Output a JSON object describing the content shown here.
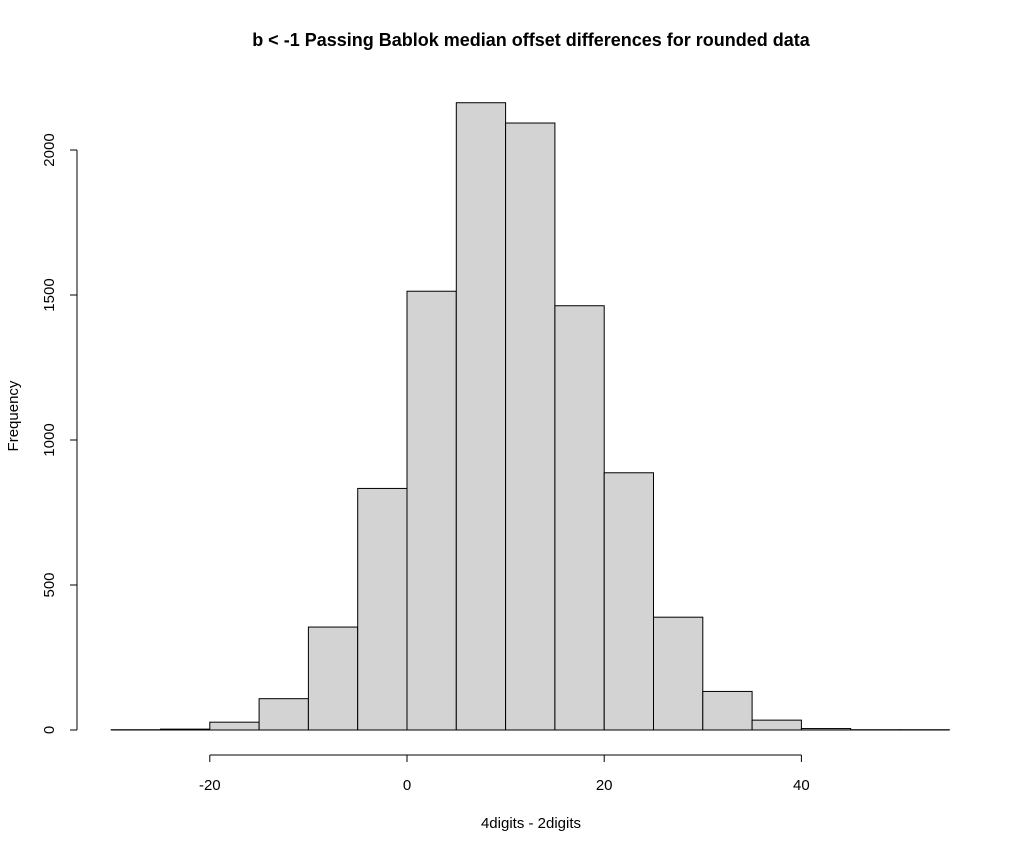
{
  "chart_data": {
    "type": "bar",
    "subtype": "histogram",
    "title": "b < -1 Passing Bablok median offset differences for rounded data",
    "xlabel": "4digits - 2digits",
    "ylabel": "Frequency",
    "bins": [
      {
        "from": -30,
        "to": -25,
        "count": 1
      },
      {
        "from": -25,
        "to": -20,
        "count": 3
      },
      {
        "from": -20,
        "to": -15,
        "count": 27
      },
      {
        "from": -15,
        "to": -10,
        "count": 108
      },
      {
        "from": -10,
        "to": -5,
        "count": 355
      },
      {
        "from": -5,
        "to": 0,
        "count": 833
      },
      {
        "from": 0,
        "to": 5,
        "count": 1513
      },
      {
        "from": 5,
        "to": 10,
        "count": 2163
      },
      {
        "from": 10,
        "to": 15,
        "count": 2093
      },
      {
        "from": 15,
        "to": 20,
        "count": 1463
      },
      {
        "from": 20,
        "to": 25,
        "count": 887
      },
      {
        "from": 25,
        "to": 30,
        "count": 389
      },
      {
        "from": 30,
        "to": 35,
        "count": 133
      },
      {
        "from": 35,
        "to": 40,
        "count": 34
      },
      {
        "from": 40,
        "to": 45,
        "count": 5
      },
      {
        "from": 45,
        "to": 50,
        "count": 1
      },
      {
        "from": 50,
        "to": 55,
        "count": 1
      }
    ],
    "xlim": [
      -30,
      55
    ],
    "ylim": [
      0,
      2200
    ],
    "x_ticks": [
      -20,
      0,
      20,
      40
    ],
    "x_tick_labels": [
      "-20",
      "0",
      "20",
      "40"
    ],
    "y_ticks": [
      0,
      500,
      1000,
      1500,
      2000
    ],
    "y_tick_labels": [
      "0",
      "500",
      "1000",
      "1500",
      "2000"
    ],
    "bar_fill": "#d3d3d3",
    "bar_stroke": "#000000",
    "grid": false,
    "legend": "none"
  }
}
